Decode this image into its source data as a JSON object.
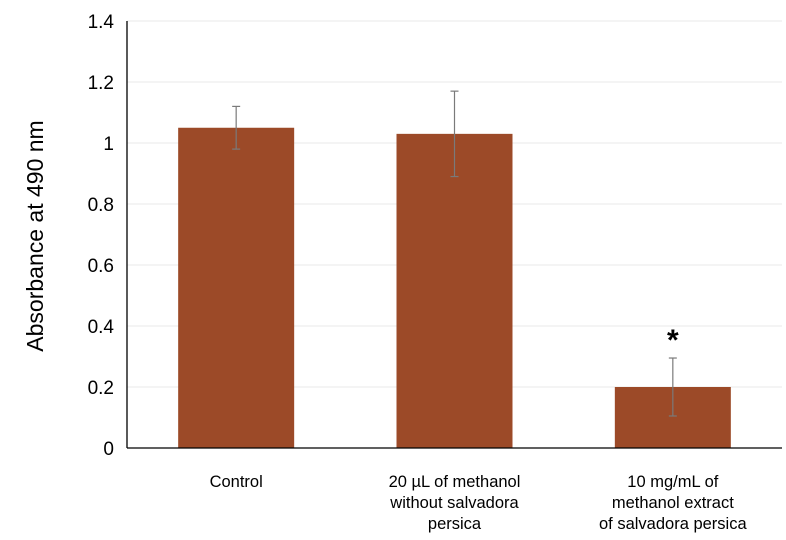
{
  "chart_data": {
    "type": "bar",
    "title": "",
    "xlabel": "",
    "ylabel": "Absorbance at 490 nm",
    "ylim": [
      0,
      1.4
    ],
    "yticks": [
      "0",
      "0.2",
      "0.4",
      "0.6",
      "0.8",
      "1",
      "1.2",
      "1.4"
    ],
    "grid": true,
    "legend": "none",
    "bar_color": "#9C4A28",
    "categories": [
      [
        "Control"
      ],
      [
        "20 µL of methanol",
        "without salvadora",
        "persica"
      ],
      [
        "10 mg/mL of",
        "methanol extract",
        "of salvadora persica"
      ]
    ],
    "values": [
      1.05,
      1.03,
      0.2
    ],
    "errors": [
      0.07,
      0.14,
      0.095
    ],
    "annotations": [
      "",
      "",
      "*"
    ]
  }
}
